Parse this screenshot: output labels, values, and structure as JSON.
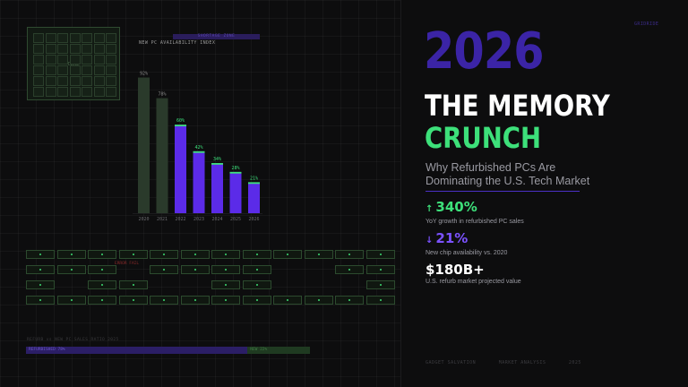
{
  "chip": {
    "label": "DDR5"
  },
  "header_tag": "GRIDRIDE",
  "chart_tag": "SHORTAGE ZONE",
  "chart_data": {
    "type": "bar",
    "title": "NEW PC AVAILABILITY INDEX",
    "categories": [
      "2020",
      "2021",
      "2022",
      "2023",
      "2024",
      "2025",
      "2026"
    ],
    "values": [
      92,
      78,
      60,
      42,
      34,
      28,
      21
    ],
    "value_labels": [
      "92%",
      "78%",
      "60%",
      "42%",
      "34%",
      "28%",
      "21%"
    ],
    "ylim": [
      0,
      100
    ],
    "colors": {
      "historic": "#2a3a2b",
      "shortage": "#5b2be8",
      "cap": "#3de07a"
    }
  },
  "memory_error_label": "ERROR FAIL",
  "ratio": {
    "label": "REFURB vs NEW PC SALES RATIO 2025",
    "refurb_label": "REFURBISHED 78%",
    "refurb_share": 78,
    "new_label": "NEW 22%",
    "new_share": 22
  },
  "headline": {
    "year": "2026",
    "line1": "THE MEMORY",
    "line2": "CRUNCH",
    "subtitle": "Why Refurbished PCs Are Dominating the U.S. Tech Market"
  },
  "stats": [
    {
      "arrow": "↑",
      "value": "340%",
      "desc": "YoY growth in refurbished PC sales"
    },
    {
      "arrow": "↓",
      "value": "21%",
      "desc": "New chip availability vs. 2020"
    },
    {
      "arrow": "",
      "value": "$180B+",
      "desc": "U.S. refurb market projected value"
    }
  ],
  "footer": [
    "GADGET SALVATION",
    "MARKET ANALYSIS",
    "2025"
  ]
}
